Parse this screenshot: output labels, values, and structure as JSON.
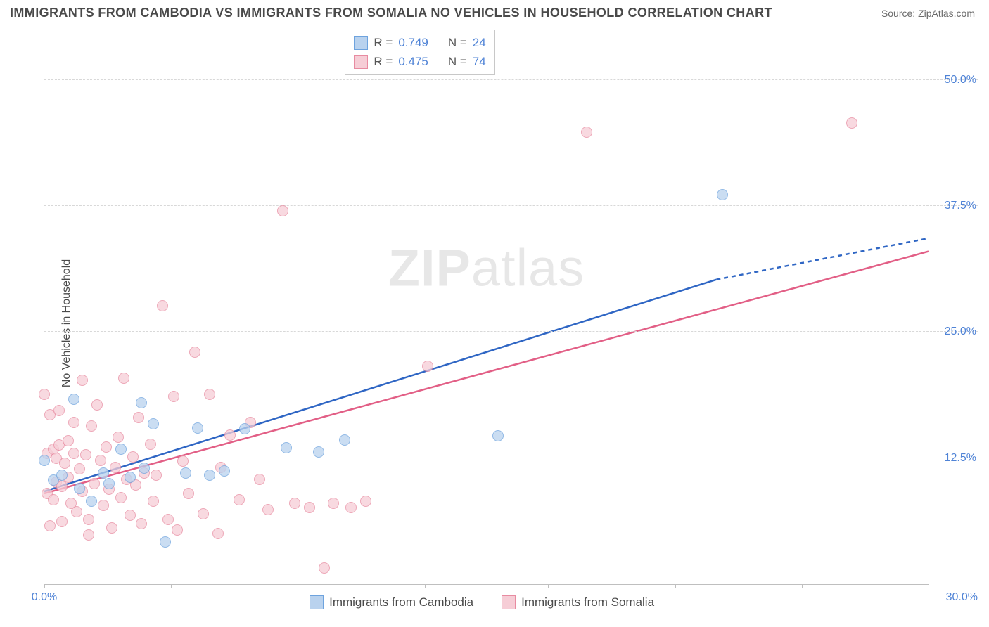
{
  "title": "IMMIGRANTS FROM CAMBODIA VS IMMIGRANTS FROM SOMALIA NO VEHICLES IN HOUSEHOLD CORRELATION CHART",
  "source": "Source: ZipAtlas.com",
  "ylabel": "No Vehicles in Household",
  "watermark_a": "ZIP",
  "watermark_b": "atlas",
  "chart": {
    "type": "scatter",
    "xlim": [
      0,
      30
    ],
    "ylim": [
      0,
      55
    ],
    "y_ticks": [
      12.5,
      25.0,
      37.5,
      50.0
    ],
    "y_tick_labels": [
      "12.5%",
      "25.0%",
      "37.5%",
      "50.0%"
    ],
    "x_min_label": "0.0%",
    "x_max_label": "30.0%",
    "x_ticks": [
      0,
      4.3,
      8.6,
      12.9,
      17.1,
      21.4,
      25.7,
      30
    ],
    "background": "#ffffff",
    "grid_color": "#d8d8d8",
    "axis_color": "#bfbfbf",
    "series": [
      {
        "name": "Immigrants from Cambodia",
        "fill": "#b9d2ee",
        "stroke": "#6ea3de",
        "line_color": "#2f66c4",
        "r_value": "0.749",
        "n_value": "24",
        "marker_r": 8,
        "trend": {
          "x1": 0,
          "y1": 9.2,
          "x2": 22.8,
          "y2": 30.2,
          "dash_to_x": 30,
          "dash_to_y": 34.3
        },
        "points": [
          [
            0.0,
            12.3
          ],
          [
            0.3,
            10.3
          ],
          [
            0.6,
            10.8
          ],
          [
            1.0,
            18.3
          ],
          [
            1.2,
            9.5
          ],
          [
            1.6,
            8.2
          ],
          [
            2.0,
            11.0
          ],
          [
            2.2,
            10.0
          ],
          [
            2.6,
            13.4
          ],
          [
            2.9,
            10.6
          ],
          [
            3.3,
            18.0
          ],
          [
            3.4,
            11.5
          ],
          [
            3.7,
            15.9
          ],
          [
            4.1,
            4.2
          ],
          [
            4.8,
            11.0
          ],
          [
            5.2,
            15.5
          ],
          [
            5.6,
            10.8
          ],
          [
            6.1,
            11.2
          ],
          [
            6.8,
            15.4
          ],
          [
            8.2,
            13.5
          ],
          [
            9.3,
            13.1
          ],
          [
            10.2,
            14.3
          ],
          [
            15.4,
            14.7
          ],
          [
            23.0,
            38.6
          ]
        ]
      },
      {
        "name": "Immigrants from Somalia",
        "fill": "#f6cdd6",
        "stroke": "#e88ba1",
        "line_color": "#e25f86",
        "r_value": "0.475",
        "n_value": "74",
        "marker_r": 8,
        "trend": {
          "x1": 0,
          "y1": 9.0,
          "x2": 30,
          "y2": 33.0
        },
        "points": [
          [
            0.0,
            18.8
          ],
          [
            0.1,
            13.0
          ],
          [
            0.1,
            9.0
          ],
          [
            0.2,
            16.8
          ],
          [
            0.3,
            13.4
          ],
          [
            0.3,
            8.4
          ],
          [
            0.4,
            12.5
          ],
          [
            0.4,
            10.1
          ],
          [
            0.5,
            17.2
          ],
          [
            0.5,
            13.8
          ],
          [
            0.6,
            9.7
          ],
          [
            0.6,
            6.2
          ],
          [
            0.7,
            12.0
          ],
          [
            0.8,
            14.2
          ],
          [
            0.8,
            10.6
          ],
          [
            0.9,
            8.0
          ],
          [
            1.0,
            13.0
          ],
          [
            1.0,
            16.0
          ],
          [
            1.1,
            7.2
          ],
          [
            1.2,
            11.4
          ],
          [
            1.3,
            20.2
          ],
          [
            1.3,
            9.2
          ],
          [
            1.4,
            12.8
          ],
          [
            1.5,
            6.4
          ],
          [
            1.6,
            15.7
          ],
          [
            1.7,
            10.0
          ],
          [
            1.8,
            17.8
          ],
          [
            1.9,
            12.3
          ],
          [
            2.0,
            7.8
          ],
          [
            2.1,
            13.6
          ],
          [
            2.2,
            9.4
          ],
          [
            2.3,
            5.6
          ],
          [
            2.4,
            11.6
          ],
          [
            2.5,
            14.6
          ],
          [
            2.6,
            8.6
          ],
          [
            2.7,
            20.4
          ],
          [
            2.8,
            10.4
          ],
          [
            2.9,
            6.8
          ],
          [
            3.0,
            12.6
          ],
          [
            3.1,
            9.8
          ],
          [
            3.2,
            16.5
          ],
          [
            3.3,
            6.0
          ],
          [
            3.4,
            11.0
          ],
          [
            3.6,
            13.9
          ],
          [
            3.7,
            8.2
          ],
          [
            3.8,
            10.8
          ],
          [
            4.0,
            27.6
          ],
          [
            4.2,
            6.4
          ],
          [
            4.4,
            18.6
          ],
          [
            4.5,
            5.4
          ],
          [
            4.7,
            12.2
          ],
          [
            4.9,
            9.0
          ],
          [
            5.1,
            23.0
          ],
          [
            5.4,
            7.0
          ],
          [
            5.6,
            18.8
          ],
          [
            5.9,
            5.0
          ],
          [
            6.0,
            11.6
          ],
          [
            6.3,
            14.8
          ],
          [
            6.6,
            8.4
          ],
          [
            7.0,
            16.0
          ],
          [
            7.3,
            10.4
          ],
          [
            7.6,
            7.4
          ],
          [
            8.1,
            37.0
          ],
          [
            8.5,
            8.0
          ],
          [
            9.0,
            7.6
          ],
          [
            9.5,
            1.6
          ],
          [
            9.8,
            8.0
          ],
          [
            10.4,
            7.6
          ],
          [
            10.9,
            8.2
          ],
          [
            13.0,
            21.6
          ],
          [
            18.4,
            44.8
          ],
          [
            27.4,
            45.7
          ],
          [
            0.2,
            5.8
          ],
          [
            1.5,
            4.9
          ]
        ]
      }
    ]
  },
  "legend_labels": {
    "r": "R =",
    "n": "N ="
  },
  "colors": {
    "tick_text": "#4f83d6",
    "title_text": "#4a4a4a"
  }
}
